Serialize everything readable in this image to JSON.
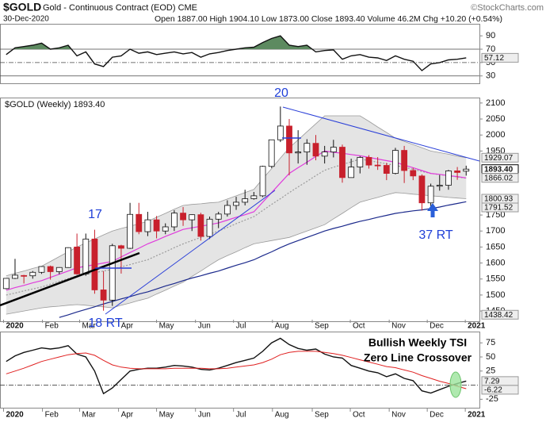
{
  "header": {
    "symbol": "$GOLD",
    "name": "Gold - Continuous Contract (EOD) CME",
    "date": "30-Dec-2020",
    "info": "Open 1887.00 High 1904.10 Low 1873.00 Close 1893.40 Volume 46.2M Chg +10.20 (+0.54%)",
    "credit": "©StockCharts.com"
  },
  "chart_data": [
    {
      "type": "line",
      "ylim": [
        19,
        108
      ],
      "yticks": [
        90,
        70,
        50,
        30
      ],
      "levels": [
        70,
        50,
        30
      ],
      "fill_color": "#5d8a60",
      "series": [
        {
          "color": "#111111",
          "values": [
            62,
            72,
            74,
            76,
            79,
            70,
            72,
            76,
            60,
            66,
            48,
            44,
            58,
            60,
            70,
            64,
            66,
            62,
            64,
            66,
            63,
            65,
            58,
            63,
            65,
            68,
            70,
            72,
            73,
            80,
            86,
            90,
            76,
            74,
            76,
            66,
            68,
            69,
            55,
            60,
            62,
            58,
            57,
            53,
            60,
            55,
            52,
            38,
            48,
            50,
            54,
            55,
            57.12
          ]
        }
      ],
      "last_values": [
        57.12
      ]
    },
    {
      "type": "candlestick",
      "title": "$GOLD (Weekly) 1893.40",
      "ylim": [
        1418,
        2117
      ],
      "xlim": [
        -0.7,
        53.5
      ],
      "yticks": [
        2100,
        2050,
        2000,
        1950,
        1750,
        1700,
        1650,
        1600,
        1550,
        1500,
        1450
      ],
      "xticks": [
        {
          "value": -0.3,
          "label": "2020"
        },
        {
          "value": 4.1,
          "label": "Feb"
        },
        {
          "value": 8.3,
          "label": "Mar"
        },
        {
          "value": 12.7,
          "label": "Apr"
        },
        {
          "value": 17,
          "label": "May"
        },
        {
          "value": 21.4,
          "label": "Jun"
        },
        {
          "value": 25.7,
          "label": "Jul"
        },
        {
          "value": 30.1,
          "label": "Aug"
        },
        {
          "value": 34.6,
          "label": "Sep"
        },
        {
          "value": 38.9,
          "label": "Oct"
        },
        {
          "value": 43.3,
          "label": "Nov"
        },
        {
          "value": 47.6,
          "label": "Dec"
        },
        {
          "value": 51.9,
          "label": "2021"
        }
      ],
      "up_color": "#ffffff",
      "down_color": "#c8202c",
      "band_color": "#e4e4e4",
      "open": [
        1520,
        1552,
        1561,
        1560,
        1571,
        1589,
        1573,
        1586,
        1650,
        1566,
        1675,
        1516,
        1484,
        1654,
        1646,
        1752,
        1698,
        1735,
        1700,
        1713,
        1756,
        1735,
        1751,
        1683,
        1737,
        1753,
        1780,
        1790,
        1801,
        1810,
        1902,
        1985,
        2028,
        1944,
        1947,
        1974,
        1934,
        1947,
        1962,
        1867,
        1900,
        1930,
        1906,
        1905,
        1880,
        1952,
        1889,
        1872,
        1788,
        1840,
        1843,
        1888,
        1887
      ],
      "high": [
        1553,
        1613,
        1563,
        1575,
        1589,
        1592,
        1587,
        1649,
        1692,
        1692,
        1704,
        1575,
        1660,
        1657,
        1788,
        1788,
        1760,
        1747,
        1724,
        1765,
        1775,
        1752,
        1757,
        1745,
        1760,
        1796,
        1807,
        1829,
        1822,
        1904,
        1985,
        2089,
        2050,
        2015,
        1987,
        2000,
        1966,
        1985,
        1970,
        1926,
        1934,
        1937,
        1931,
        1913,
        1960,
        1966,
        1897,
        1877,
        1848,
        1875,
        1891,
        1900,
        1904.1
      ],
      "low": [
        1518,
        1550,
        1536,
        1551,
        1566,
        1548,
        1565,
        1585,
        1563,
        1560,
        1504,
        1451,
        1466,
        1567,
        1644,
        1690,
        1684,
        1677,
        1690,
        1700,
        1716,
        1700,
        1670,
        1675,
        1709,
        1745,
        1766,
        1780,
        1798,
        1806,
        1897,
        1978,
        1874,
        1911,
        1907,
        1921,
        1911,
        1930,
        1851,
        1870,
        1880,
        1895,
        1891,
        1859,
        1877,
        1850,
        1859,
        1764,
        1767,
        1826,
        1829,
        1860,
        1873
      ],
      "close": [
        1552,
        1562,
        1560,
        1571,
        1589,
        1573,
        1586,
        1648,
        1566,
        1675,
        1516,
        1484,
        1654,
        1646,
        1752,
        1698,
        1735,
        1700,
        1713,
        1756,
        1735,
        1751,
        1683,
        1737,
        1753,
        1780,
        1790,
        1801,
        1810,
        1902,
        1985,
        2028,
        1944,
        1947,
        1974,
        1934,
        1947,
        1962,
        1867,
        1900,
        1930,
        1906,
        1905,
        1880,
        1952,
        1889,
        1872,
        1788,
        1840,
        1843,
        1888,
        1883,
        1893.4
      ],
      "band": {
        "upper": [
          1560,
          1568,
          1575,
          1583,
          1590,
          1605,
          1620,
          1635,
          1650,
          1663,
          1675,
          1688,
          1700,
          1708,
          1715,
          1723,
          1730,
          1743,
          1755,
          1768,
          1780,
          1783,
          1785,
          1788,
          1790,
          1800,
          1810,
          1820,
          1830,
          1863,
          1895,
          1928,
          1960,
          1985,
          2010,
          2035,
          2060,
          2060,
          2060,
          2060,
          2060,
          2043,
          2025,
          2008,
          1990,
          1980,
          1970,
          1960,
          1950,
          1945,
          1940,
          1934,
          1929.07
        ],
        "lower": [
          1440,
          1445,
          1450,
          1455,
          1460,
          1463,
          1465,
          1468,
          1470,
          1468,
          1465,
          1463,
          1460,
          1468,
          1475,
          1483,
          1490,
          1503,
          1515,
          1528,
          1540,
          1558,
          1575,
          1593,
          1610,
          1623,
          1635,
          1648,
          1660,
          1665,
          1670,
          1675,
          1680,
          1690,
          1700,
          1710,
          1720,
          1738,
          1755,
          1773,
          1790,
          1798,
          1805,
          1813,
          1820,
          1818,
          1815,
          1813,
          1810,
          1808,
          1805,
          1803,
          1800.93
        ],
        "color": "#9a9a9a"
      },
      "series": [
        {
          "color": "#9a9a9a",
          "dashed": true,
          "values": [
            1500,
            1506,
            1513,
            1519,
            1525,
            1534,
            1543,
            1551,
            1560,
            1565,
            1570,
            1575,
            1580,
            1588,
            1595,
            1603,
            1610,
            1623,
            1635,
            1648,
            1660,
            1670,
            1680,
            1690,
            1700,
            1711,
            1723,
            1734,
            1745,
            1764,
            1783,
            1801,
            1820,
            1838,
            1855,
            1873,
            1890,
            1899,
            1908,
            1916,
            1925,
            1920,
            1915,
            1910,
            1905,
            1899,
            1893,
            1886,
            1880,
            1876,
            1873,
            1869,
            1865
          ]
        },
        {
          "color": "#e03cdc",
          "values": [
            1515,
            1523,
            1530,
            1538,
            1545,
            1555,
            1565,
            1575,
            1585,
            1590,
            1595,
            1600,
            1605,
            1619,
            1633,
            1646,
            1660,
            1671,
            1683,
            1694,
            1705,
            1710,
            1715,
            1720,
            1725,
            1734,
            1743,
            1751,
            1760,
            1790,
            1820,
            1850,
            1880,
            1898,
            1915,
            1933,
            1950,
            1946,
            1943,
            1939,
            1935,
            1930,
            1925,
            1920,
            1915,
            1906,
            1898,
            1889,
            1880,
            1877,
            1873,
            1870,
            1866.02
          ]
        },
        {
          "color": "#1c2a8c",
          "values": [
            null,
            null,
            null,
            null,
            null,
            null,
            1430,
            1438,
            1447,
            1455,
            1463,
            1472,
            1480,
            1488,
            1495,
            1503,
            1510,
            1519,
            1528,
            1536,
            1545,
            1553,
            1560,
            1568,
            1575,
            1584,
            1593,
            1601,
            1610,
            1623,
            1635,
            1648,
            1660,
            1670,
            1680,
            1690,
            1700,
            1708,
            1715,
            1723,
            1730,
            1736,
            1743,
            1749,
            1755,
            1759,
            1763,
            1766,
            1770,
            1775,
            1781,
            1786,
            1791.52
          ]
        }
      ],
      "last_values": [
        1929.07,
        {
          "value": 1893.4,
          "label": "1893.40"
        },
        1866.02,
        1800.93,
        1791.52,
        1438.42
      ],
      "annotations": [
        {
          "text": "20"
        },
        {
          "text": "17"
        },
        {
          "text": "18 RT"
        },
        {
          "text": "37 RT"
        }
      ]
    },
    {
      "type": "line",
      "ylim": [
        -40,
        95
      ],
      "yticks": [
        75,
        50,
        25,
        -25
      ],
      "series": [
        {
          "color": "#111111",
          "values": [
            42,
            52,
            58,
            62,
            66,
            64,
            66,
            70,
            55,
            50,
            25,
            -15,
            -5,
            10,
            25,
            28,
            30,
            30,
            32,
            35,
            34,
            32,
            28,
            27,
            30,
            35,
            40,
            44,
            48,
            60,
            75,
            83,
            72,
            65,
            62,
            64,
            55,
            50,
            48,
            35,
            30,
            25,
            22,
            15,
            20,
            12,
            8,
            -10,
            -14,
            -8,
            -2,
            3,
            7.29
          ]
        },
        {
          "color": "#e02020",
          "values": [
            20,
            25,
            30,
            36,
            42,
            46,
            50,
            54,
            56,
            57,
            53,
            44,
            36,
            32,
            30,
            29,
            29,
            29,
            29,
            30,
            30,
            30,
            30,
            29,
            29,
            30,
            32,
            34,
            36,
            40,
            46,
            54,
            58,
            60,
            60,
            60,
            58,
            56,
            53,
            49,
            45,
            41,
            37,
            33,
            31,
            27,
            23,
            17,
            12,
            7,
            3,
            -2,
            -6.22
          ]
        }
      ],
      "last_values": [
        7.29,
        -6.22
      ],
      "annotations": [
        {
          "text": "Bullish Weekly TSI"
        },
        {
          "text": "Zero Line Crossover"
        }
      ]
    }
  ]
}
